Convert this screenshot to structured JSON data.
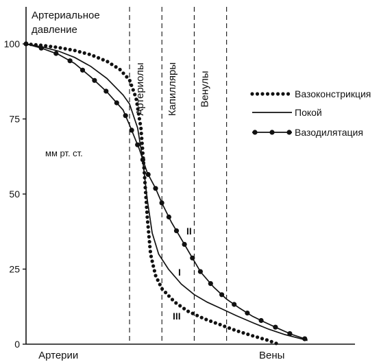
{
  "chart_data": {
    "type": "line",
    "title_lines": [
      "Артериальное",
      "давление"
    ],
    "unit_label": "мм рт. ст.",
    "ylim": [
      0,
      100
    ],
    "y_ticks": [
      0,
      25,
      50,
      75,
      100
    ],
    "xlim": [
      0,
      10
    ],
    "x_labels": [
      {
        "text": "Артерии",
        "x": 1.0
      },
      {
        "text": "Вены",
        "x": 7.6
      }
    ],
    "regions": [
      {
        "name": "Артериолы",
        "from": 3.2,
        "to": 4.2
      },
      {
        "name": "Капилляры",
        "from": 4.2,
        "to": 5.2
      },
      {
        "name": "Венулы",
        "from": 5.2,
        "to": 6.2
      }
    ],
    "boundaries": [
      3.2,
      4.2,
      5.2,
      6.2
    ],
    "series": [
      {
        "name": "Вазоконстрикция",
        "roman": "III",
        "style": "dotted",
        "points": [
          [
            0,
            100
          ],
          [
            0.5,
            99.5
          ],
          [
            1,
            98.8
          ],
          [
            1.5,
            97.8
          ],
          [
            2,
            96.4
          ],
          [
            2.5,
            94.2
          ],
          [
            2.9,
            91.5
          ],
          [
            3.2,
            88
          ],
          [
            3.4,
            82
          ],
          [
            3.55,
            72
          ],
          [
            3.65,
            58
          ],
          [
            3.75,
            42
          ],
          [
            3.85,
            30
          ],
          [
            4.0,
            23
          ],
          [
            4.2,
            18.5
          ],
          [
            4.6,
            14
          ],
          [
            5.0,
            11
          ],
          [
            5.5,
            8.5
          ],
          [
            6.0,
            6.5
          ],
          [
            6.5,
            4.5
          ],
          [
            7.0,
            2.8
          ],
          [
            7.5,
            1.2
          ],
          [
            7.8,
            0
          ]
        ]
      },
      {
        "name": "Покой",
        "roman": "I",
        "style": "solid",
        "points": [
          [
            0,
            100
          ],
          [
            0.5,
            99
          ],
          [
            1,
            97.6
          ],
          [
            1.5,
            95.5
          ],
          [
            2,
            92.5
          ],
          [
            2.5,
            88.5
          ],
          [
            3.0,
            83
          ],
          [
            3.2,
            80
          ],
          [
            3.45,
            72
          ],
          [
            3.6,
            62
          ],
          [
            3.75,
            48
          ],
          [
            3.9,
            37
          ],
          [
            4.1,
            30
          ],
          [
            4.4,
            25
          ],
          [
            4.8,
            20
          ],
          [
            5.2,
            16.5
          ],
          [
            5.6,
            14
          ],
          [
            6.0,
            12
          ],
          [
            6.5,
            9.5
          ],
          [
            7.0,
            7.2
          ],
          [
            7.5,
            5
          ],
          [
            8.0,
            3.2
          ],
          [
            8.5,
            1.8
          ],
          [
            8.7,
            1.2
          ]
        ]
      },
      {
        "name": "Вазодилятация",
        "roman": "II",
        "style": "dot-line",
        "points": [
          [
            0,
            100
          ],
          [
            0.5,
            98.5
          ],
          [
            1,
            96.5
          ],
          [
            1.5,
            93.5
          ],
          [
            2,
            89
          ],
          [
            2.5,
            84
          ],
          [
            3.0,
            78
          ],
          [
            3.2,
            73
          ],
          [
            3.5,
            65
          ],
          [
            3.75,
            57
          ],
          [
            4.0,
            52
          ],
          [
            4.2,
            47
          ],
          [
            4.5,
            40.5
          ],
          [
            4.8,
            35
          ],
          [
            5.1,
            29.5
          ],
          [
            5.4,
            24
          ],
          [
            5.8,
            19
          ],
          [
            6.2,
            15
          ],
          [
            6.6,
            12
          ],
          [
            7.0,
            9.3
          ],
          [
            7.4,
            7.2
          ],
          [
            7.8,
            5.2
          ],
          [
            8.2,
            3.3
          ],
          [
            8.7,
            1.5
          ]
        ]
      }
    ],
    "legend_position": "right",
    "grid": false
  }
}
